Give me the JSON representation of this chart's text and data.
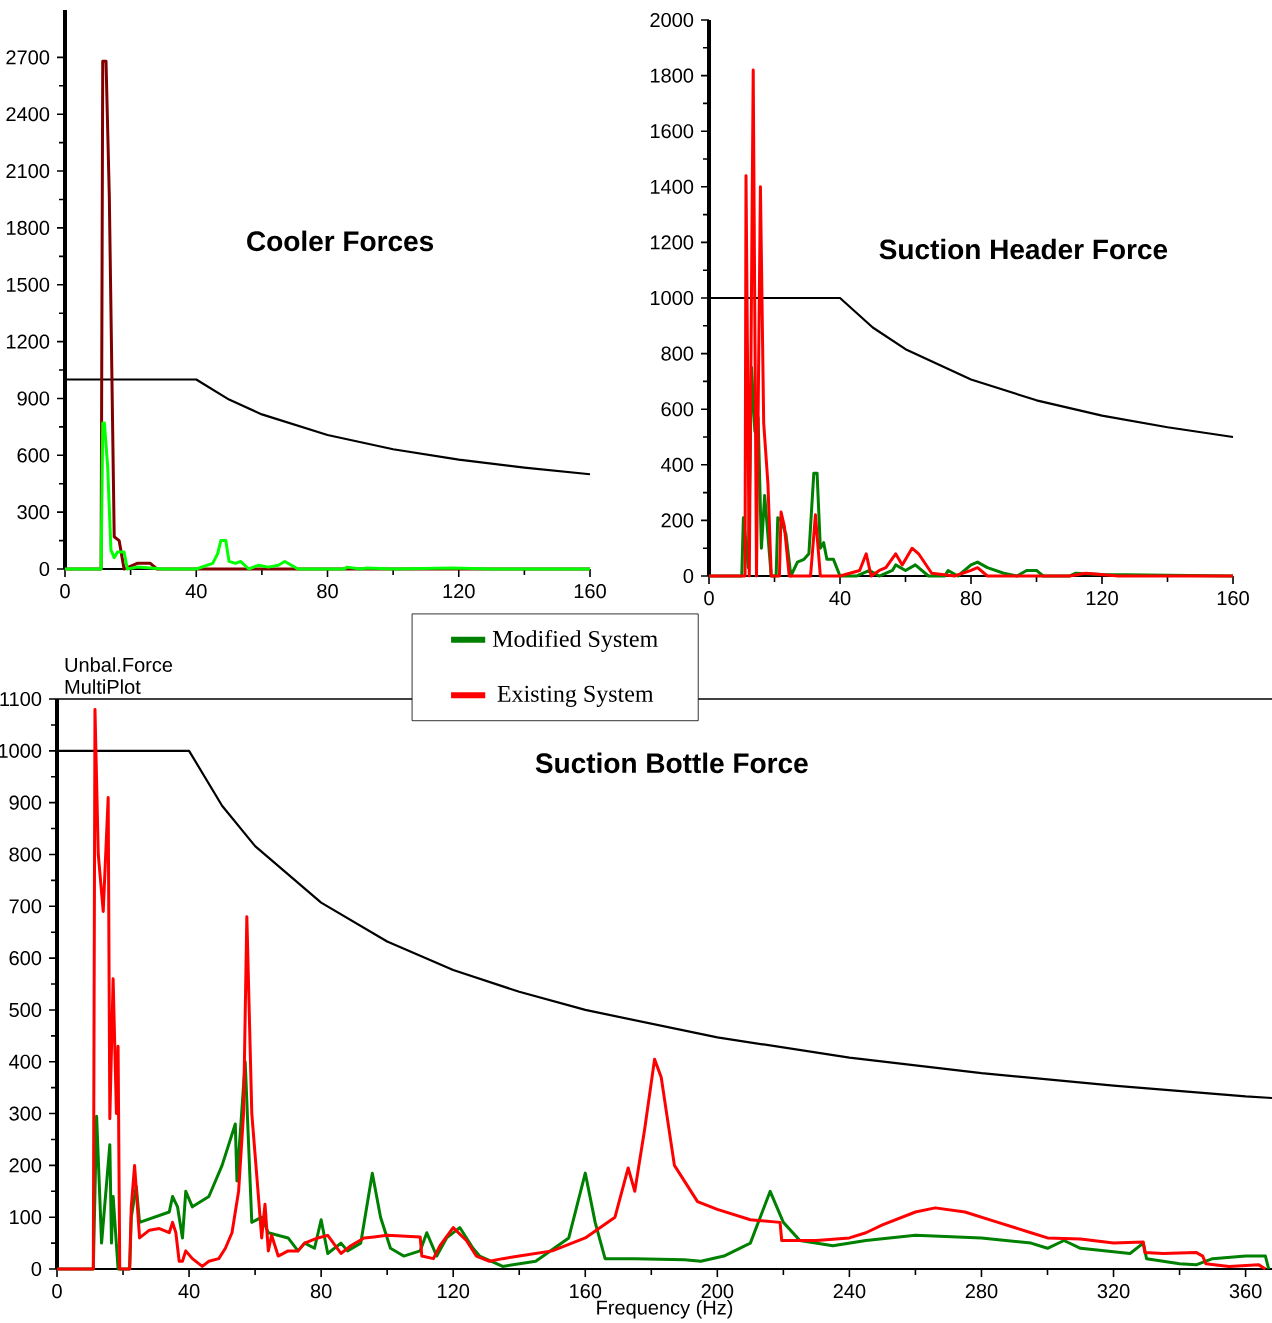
{
  "chart_data": [
    {
      "type": "line",
      "title": "Cooler Forces",
      "xlim": [
        0,
        160
      ],
      "ylim": [
        0,
        2950
      ],
      "xticks": [
        0,
        40,
        80,
        120,
        160
      ],
      "yticks": [
        0,
        300,
        600,
        900,
        1200,
        1500,
        1800,
        2100,
        2400,
        2700
      ],
      "legend": false,
      "series": [
        {
          "color": "#000000",
          "x": [
            0,
            40,
            50,
            60,
            80,
            100,
            120,
            140,
            160
          ],
          "values": [
            1000,
            1000,
            894,
            816,
            707,
            632,
            577,
            535,
            500
          ]
        },
        {
          "color": "#800000",
          "x": [
            0,
            11,
            11.5,
            12.5,
            13.5,
            15,
            16.5,
            18,
            22,
            24,
            26,
            28,
            40,
            160
          ],
          "values": [
            0,
            0,
            2680,
            2680,
            1970,
            170,
            150,
            0,
            30,
            30,
            30,
            0,
            0,
            0
          ]
        },
        {
          "color": "#00ff00",
          "x": [
            0,
            11,
            11.5,
            12,
            13,
            14,
            15,
            16,
            18,
            19,
            22,
            30,
            40,
            45,
            46.5,
            47.5,
            49,
            50,
            52,
            53.5,
            56,
            59,
            62,
            65,
            67,
            71,
            85,
            86,
            90,
            92,
            100,
            118,
            130,
            160
          ],
          "values": [
            0,
            0,
            770,
            770,
            540,
            100,
            60,
            90,
            90,
            0,
            10,
            0,
            0,
            30,
            80,
            150,
            150,
            40,
            30,
            40,
            0,
            20,
            10,
            20,
            40,
            0,
            0,
            10,
            0,
            5,
            0,
            5,
            0,
            0
          ]
        }
      ]
    },
    {
      "type": "line",
      "title": "Suction Header Force",
      "xlim": [
        0,
        160
      ],
      "ylim": [
        0,
        2000
      ],
      "xticks": [
        0,
        40,
        80,
        120,
        160
      ],
      "yticks": [
        0,
        200,
        400,
        600,
        800,
        1000,
        1200,
        1400,
        1600,
        1800,
        2000
      ],
      "legend": false,
      "series": [
        {
          "color": "#000000",
          "x": [
            0,
            40,
            50,
            60,
            80,
            100,
            120,
            140,
            160
          ],
          "values": [
            1000,
            1000,
            894,
            816,
            707,
            632,
            577,
            535,
            500
          ]
        },
        {
          "color": "#008000",
          "x": [
            0,
            10,
            10.5,
            12,
            13,
            14,
            15,
            16,
            17,
            19,
            20.5,
            21,
            22,
            23.5,
            25,
            27,
            29,
            30.5,
            32,
            33,
            34,
            35,
            36,
            38,
            40,
            45,
            49,
            52,
            56,
            57,
            60,
            63,
            67,
            72,
            73,
            76,
            80,
            82,
            85,
            90,
            94,
            97,
            100,
            102,
            110,
            112,
            120,
            160
          ],
          "values": [
            0,
            0,
            210,
            30,
            750,
            520,
            570,
            100,
            290,
            0,
            0,
            210,
            200,
            150,
            0,
            50,
            60,
            80,
            370,
            370,
            100,
            120,
            60,
            60,
            0,
            0,
            20,
            0,
            20,
            40,
            20,
            40,
            0,
            0,
            20,
            0,
            40,
            50,
            30,
            10,
            0,
            20,
            20,
            0,
            0,
            10,
            5,
            0
          ]
        },
        {
          "color": "#ff0000",
          "x": [
            0,
            11,
            11.3,
            12.3,
            13.5,
            14.5,
            15.7,
            16.7,
            18,
            19,
            21.5,
            22,
            23,
            24.5,
            31,
            32.5,
            34,
            40,
            46,
            48,
            49.5,
            52,
            54,
            57,
            59,
            62,
            64,
            68,
            75,
            80,
            82,
            85,
            110,
            115,
            125,
            160
          ],
          "values": [
            0,
            0,
            1440,
            0,
            1820,
            0,
            1400,
            550,
            330,
            0,
            0,
            230,
            180,
            0,
            0,
            220,
            0,
            0,
            20,
            80,
            0,
            20,
            30,
            80,
            40,
            100,
            80,
            10,
            0,
            20,
            30,
            0,
            0,
            10,
            0,
            0
          ]
        }
      ]
    },
    {
      "type": "line",
      "title": "Suction Bottle Force",
      "xlabel": "Frequency (Hz)",
      "ylabel": "Unbal.Force MultiPlot",
      "xlim": [
        0,
        368
      ],
      "ylim": [
        0,
        1100
      ],
      "xticks": [
        0,
        40,
        80,
        120,
        160,
        200,
        240,
        280,
        320,
        360
      ],
      "yticks": [
        0,
        100,
        200,
        300,
        400,
        500,
        600,
        700,
        800,
        900,
        1000,
        1100
      ],
      "legend": "top",
      "series": [
        {
          "color": "#000000",
          "x": [
            0,
            40,
            50,
            60,
            80,
            100,
            120,
            140,
            160,
            200,
            240,
            280,
            320,
            360,
            368
          ],
          "values": [
            1000,
            1000,
            894,
            816,
            707,
            632,
            577,
            535,
            500,
            447,
            408,
            378,
            354,
            333,
            330
          ]
        },
        {
          "name": "Modified System",
          "color": "#008000",
          "x": [
            0,
            11,
            12,
            13.5,
            16,
            16.5,
            17,
            18.5,
            22,
            22.5,
            24,
            25,
            34,
            35,
            36.5,
            38,
            39,
            41,
            46,
            50,
            54,
            54.5,
            57,
            59,
            62,
            64,
            70,
            73,
            75,
            78,
            80,
            82,
            86,
            88,
            92,
            95.5,
            98,
            101,
            105,
            110,
            112,
            115,
            118,
            122,
            126,
            128,
            135,
            145,
            155,
            160,
            163,
            166,
            175,
            190,
            195,
            202,
            210,
            216,
            220,
            225,
            235,
            245,
            260,
            280,
            295,
            300,
            305,
            310,
            325,
            329,
            330,
            340,
            345,
            350,
            360,
            366,
            367
          ],
          "values": [
            0,
            0,
            295,
            50,
            240,
            50,
            140,
            0,
            0,
            100,
            160,
            90,
            110,
            140,
            120,
            60,
            150,
            120,
            140,
            200,
            280,
            170,
            400,
            90,
            100,
            70,
            60,
            35,
            50,
            40,
            95,
            30,
            50,
            35,
            50,
            185,
            100,
            40,
            25,
            35,
            70,
            25,
            60,
            80,
            40,
            25,
            5,
            15,
            60,
            185,
            90,
            20,
            20,
            18,
            15,
            25,
            50,
            150,
            90,
            55,
            45,
            55,
            65,
            60,
            50,
            40,
            55,
            40,
            30,
            50,
            20,
            10,
            8,
            20,
            25,
            25,
            0
          ]
        },
        {
          "name": "Existing System",
          "color": "#ff0000",
          "x": [
            0,
            11,
            11.5,
            12.5,
            14,
            15.5,
            16,
            17,
            18,
            18.5,
            19,
            22,
            22.5,
            23.5,
            25,
            28,
            31,
            34,
            35,
            36,
            37,
            38,
            39,
            41,
            44,
            46,
            49,
            51,
            53,
            55,
            56.5,
            57.5,
            59,
            60.5,
            62,
            63,
            64,
            65,
            67,
            70,
            73,
            75,
            79,
            82,
            86,
            89,
            93,
            96,
            100,
            110,
            110.5,
            114,
            116,
            120,
            124,
            127,
            131,
            135,
            140,
            150,
            160,
            169,
            173,
            175,
            178,
            181,
            183,
            187,
            194,
            200,
            210,
            219,
            219.5,
            230,
            240,
            245,
            250,
            260,
            266,
            275,
            285,
            295,
            300,
            310,
            320,
            329,
            329.5,
            335,
            345,
            347,
            348,
            355,
            364,
            366
          ],
          "values": [
            0,
            0,
            1080,
            800,
            690,
            910,
            290,
            560,
            300,
            430,
            0,
            0,
            120,
            200,
            60,
            75,
            78,
            70,
            90,
            70,
            15,
            15,
            35,
            20,
            5,
            15,
            20,
            40,
            70,
            150,
            300,
            680,
            300,
            180,
            60,
            125,
            35,
            65,
            25,
            35,
            35,
            50,
            60,
            65,
            30,
            45,
            60,
            62,
            65,
            62,
            25,
            20,
            45,
            80,
            55,
            25,
            15,
            20,
            25,
            35,
            60,
            100,
            195,
            150,
            270,
            405,
            370,
            200,
            130,
            115,
            95,
            90,
            55,
            55,
            60,
            70,
            85,
            110,
            118,
            110,
            90,
            70,
            60,
            58,
            50,
            52,
            32,
            30,
            32,
            25,
            10,
            5,
            8,
            0
          ]
        }
      ]
    }
  ]
}
